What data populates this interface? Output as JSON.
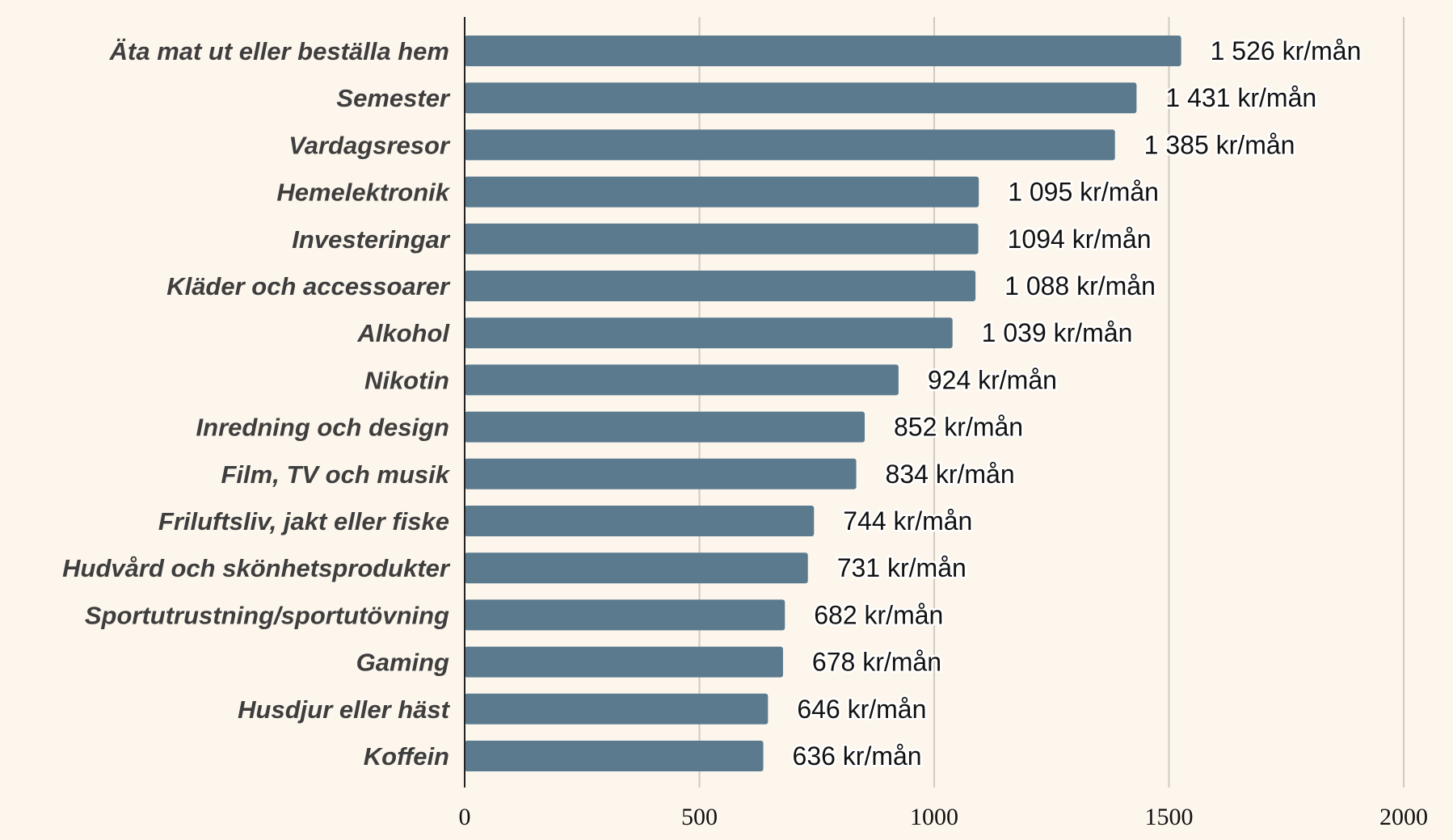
{
  "chart_data": {
    "type": "bar",
    "orientation": "horizontal",
    "title": "",
    "xlabel": "",
    "ylabel": "",
    "xlim": [
      0,
      2000
    ],
    "xticks": [
      "0",
      "500",
      "1000",
      "1500",
      "2000"
    ],
    "grid": true,
    "bar_color": "#5b7a8e",
    "background": "#fdf6ed",
    "categories": [
      "Äta mat ut eller beställa hem",
      "Semester",
      "Vardagsresor",
      "Hemelektronik",
      "Investeringar",
      "Kläder och accessoarer",
      "Alkohol",
      "Nikotin",
      "Inredning och design",
      "Film, TV och musik",
      "Friluftsliv, jakt eller fiske",
      "Hudvård och skönhetsprodukter",
      "Sportutrustning/sportutövning",
      "Gaming",
      "Husdjur eller häst",
      "Koffein"
    ],
    "values": [
      1526,
      1431,
      1385,
      1095,
      1094,
      1088,
      1039,
      924,
      852,
      834,
      744,
      731,
      682,
      678,
      646,
      636
    ],
    "labels": [
      "1 526 kr/mån",
      "1 431 kr/mån",
      "1 385 kr/mån",
      "1 095 kr/mån",
      "1094 kr/mån",
      "1 088 kr/mån",
      "1 039 kr/mån",
      "924 kr/mån",
      "852 kr/mån",
      "834 kr/mån",
      "744 kr/mån",
      "731 kr/mån",
      "682 kr/mån",
      "678 kr/mån",
      "646 kr/mån",
      "636 kr/mån"
    ]
  }
}
